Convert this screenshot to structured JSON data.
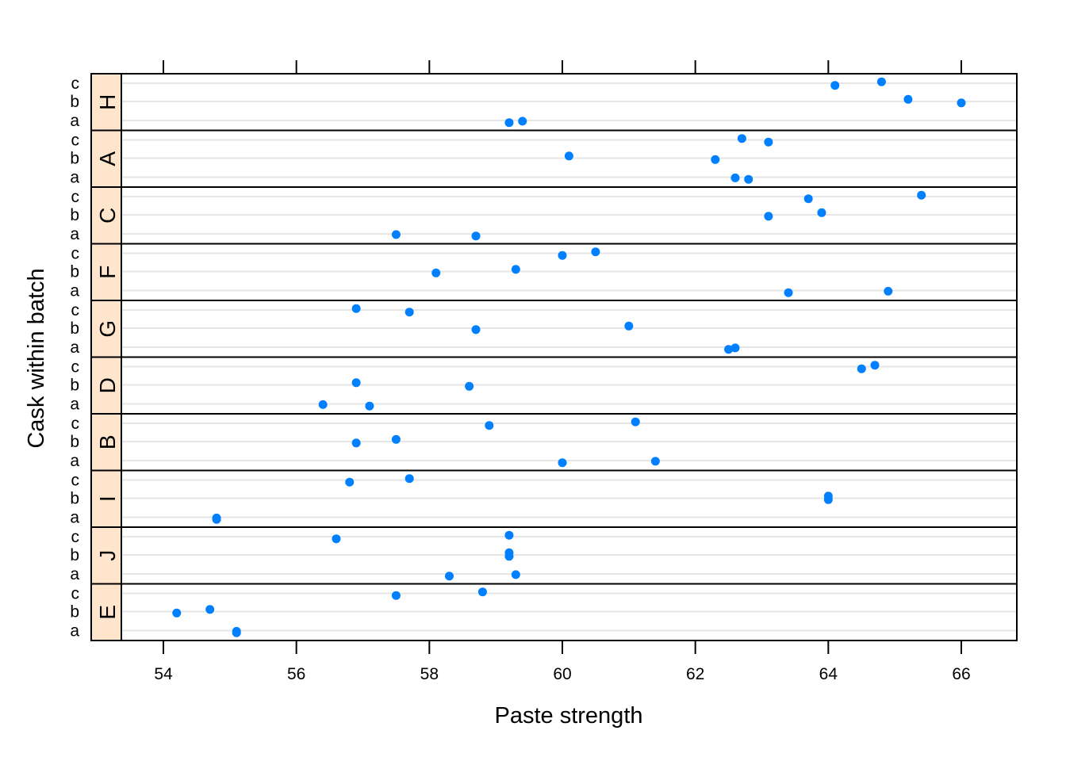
{
  "chart_data": {
    "type": "scatter",
    "xlabel": "Paste strength",
    "ylabel": "Cask within batch",
    "xlim": [
      52.9,
      66.8
    ],
    "xticks": [
      "54",
      "56",
      "58",
      "60",
      "62",
      "64",
      "66"
    ],
    "cask_levels": [
      "a",
      "b",
      "c"
    ],
    "point_color": "#0080ff",
    "strip_color": "#ffe5cc",
    "grid": true,
    "panels": [
      {
        "batch": "H",
        "values": {
          "a": [
            59.2,
            59.4
          ],
          "b": [
            65.2,
            66.0
          ],
          "c": [
            64.8,
            64.1
          ]
        }
      },
      {
        "batch": "A",
        "values": {
          "a": [
            62.8,
            62.6
          ],
          "b": [
            60.1,
            62.3
          ],
          "c": [
            62.7,
            63.1
          ]
        }
      },
      {
        "batch": "C",
        "values": {
          "a": [
            58.7,
            57.5
          ],
          "b": [
            63.9,
            63.1
          ],
          "c": [
            65.4,
            63.7
          ]
        }
      },
      {
        "batch": "F",
        "values": {
          "a": [
            63.4,
            64.9
          ],
          "b": [
            59.3,
            58.1
          ],
          "c": [
            60.5,
            60.0
          ]
        }
      },
      {
        "batch": "G",
        "values": {
          "a": [
            62.5,
            62.6
          ],
          "b": [
            61.0,
            58.7
          ],
          "c": [
            56.9,
            57.7
          ]
        }
      },
      {
        "batch": "D",
        "values": {
          "a": [
            57.1,
            56.4
          ],
          "b": [
            56.9,
            58.6
          ],
          "c": [
            64.7,
            64.5
          ]
        }
      },
      {
        "batch": "B",
        "values": {
          "a": [
            60.0,
            61.4
          ],
          "b": [
            57.5,
            56.9
          ],
          "c": [
            61.1,
            58.9
          ]
        }
      },
      {
        "batch": "I",
        "values": {
          "a": [
            54.8,
            54.8
          ],
          "b": [
            64.0,
            64.0
          ],
          "c": [
            57.7,
            56.8
          ]
        }
      },
      {
        "batch": "J",
        "values": {
          "a": [
            58.3,
            59.3
          ],
          "b": [
            59.2,
            59.2
          ],
          "c": [
            59.2,
            56.6
          ]
        }
      },
      {
        "batch": "E",
        "values": {
          "a": [
            55.1,
            55.1
          ],
          "b": [
            54.7,
            54.2
          ],
          "c": [
            58.8,
            57.5
          ]
        }
      }
    ]
  }
}
